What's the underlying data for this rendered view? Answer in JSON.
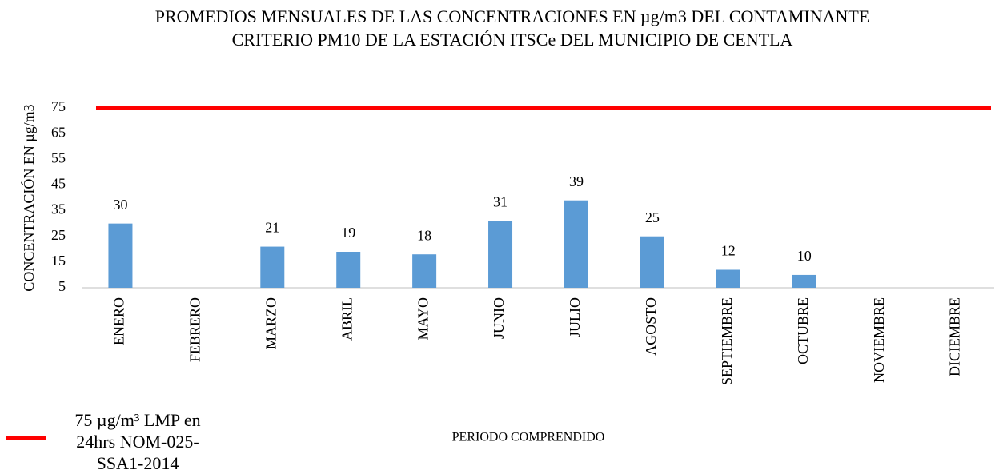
{
  "chart_data": {
    "type": "bar",
    "title": "PROMEDIOS MENSUALES DE LAS CONCENTRACIONES EN µg/m3 DEL CONTAMINANTE CRITERIO PM10  DE LA ESTACIÓN ITSCe DEL MUNICIPIO DE CENTLA",
    "x_label": "PERIODO COMPRENDIDO",
    "y_label": "CONCENTRACIÓN EN µg/m3",
    "categories": [
      "ENERO",
      "FEBRERO",
      "MARZO",
      "ABRIL",
      "MAYO",
      "JUNIO",
      "JULIO",
      "AGOSTO",
      "SEPTIEMBRE",
      "OCTUBRE",
      "NOVIEMBRE",
      "DICIEMBRE"
    ],
    "values": [
      30,
      null,
      21,
      19,
      18,
      31,
      39,
      25,
      12,
      10,
      null,
      null
    ],
    "color": "#5b9bd5",
    "ylim": [
      5,
      75
    ],
    "yticks": [
      5,
      15,
      25,
      35,
      45,
      55,
      65,
      75
    ],
    "grid": false,
    "reference_line": {
      "name": "75 µg/m³ LMP en 24hrs NOM-025-SSA1-2014",
      "value": 75,
      "color": "#ff0000"
    },
    "legend": "bottom-left"
  }
}
